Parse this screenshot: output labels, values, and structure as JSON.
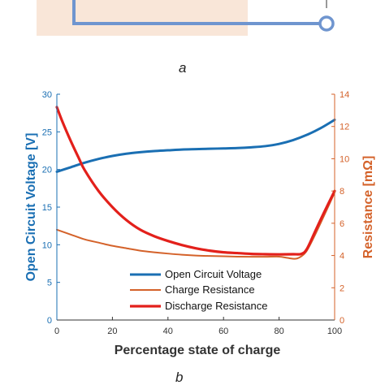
{
  "panel_a": {
    "caption": "a",
    "colors": {
      "fill": "#f9e6d8",
      "wire": "#6f95cf"
    }
  },
  "chart_data": {
    "type": "line",
    "caption": "b",
    "xlabel": "Percentage state of charge",
    "ylabel_left": "Open Circuit Voltage [V]",
    "ylabel_right": "Resistance [mΩ]",
    "xlim": [
      0,
      100
    ],
    "ylim_left": [
      0,
      30
    ],
    "ylim_right": [
      0,
      14
    ],
    "xticks": [
      "0",
      "20",
      "40",
      "60",
      "80",
      "100"
    ],
    "yticks_left": [
      "0",
      "5",
      "10",
      "15",
      "20",
      "25",
      "30"
    ],
    "yticks_right": [
      "0",
      "2",
      "4",
      "6",
      "8",
      "10",
      "12",
      "14"
    ],
    "legend_position": "bottom-center",
    "grid": false,
    "colors": {
      "left_axis": "#1a6fb3",
      "right_axis": "#d4622a"
    },
    "series": [
      {
        "name": "Open Circuit Voltage",
        "axis": "left",
        "color": "#1a6fb3",
        "x": [
          0,
          5,
          10,
          15,
          20,
          25,
          30,
          35,
          40,
          45,
          50,
          55,
          60,
          65,
          70,
          75,
          80,
          85,
          90,
          95,
          100
        ],
        "y": [
          19.7,
          20.3,
          20.9,
          21.4,
          21.8,
          22.1,
          22.3,
          22.45,
          22.55,
          22.65,
          22.7,
          22.75,
          22.8,
          22.85,
          22.95,
          23.1,
          23.4,
          23.9,
          24.6,
          25.5,
          26.6
        ]
      },
      {
        "name": "Charge Resistance",
        "axis": "right",
        "color": "#d4622a",
        "x": [
          0,
          5,
          10,
          15,
          20,
          25,
          30,
          35,
          40,
          45,
          50,
          55,
          60,
          65,
          70,
          75,
          80,
          83,
          86,
          88,
          90,
          93,
          96,
          100
        ],
        "y": [
          5.6,
          5.3,
          5.0,
          4.8,
          4.6,
          4.45,
          4.3,
          4.2,
          4.12,
          4.05,
          4.0,
          3.97,
          3.95,
          3.93,
          3.92,
          3.92,
          3.93,
          3.85,
          3.8,
          3.95,
          4.3,
          5.3,
          6.4,
          7.9
        ]
      },
      {
        "name": "Discharge Resistance",
        "axis": "right",
        "color": "#e3201b",
        "x": [
          0,
          2,
          5,
          8,
          10,
          15,
          20,
          25,
          30,
          35,
          40,
          45,
          50,
          55,
          60,
          65,
          70,
          75,
          80,
          85,
          88,
          90,
          93,
          96,
          100
        ],
        "y": [
          13.2,
          12.3,
          11.1,
          10.0,
          9.3,
          8.0,
          7.0,
          6.2,
          5.6,
          5.2,
          4.9,
          4.65,
          4.45,
          4.3,
          4.2,
          4.15,
          4.1,
          4.08,
          4.07,
          4.08,
          4.1,
          4.4,
          5.5,
          6.6,
          8.0
        ]
      }
    ]
  }
}
